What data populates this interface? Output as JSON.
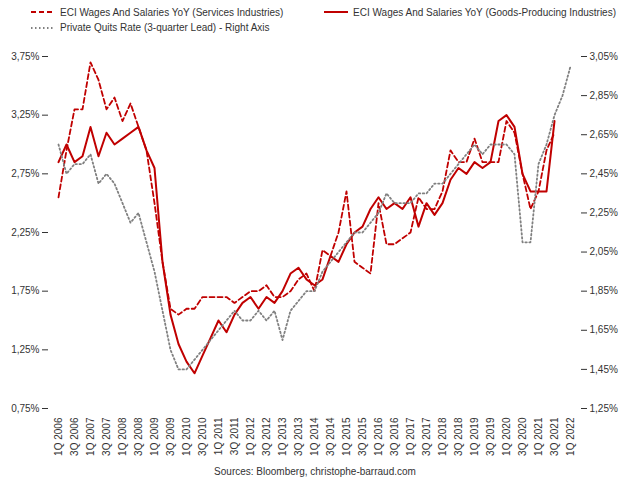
{
  "chart_data": {
    "type": "line",
    "source": "Sources: Bloomberg, christophe-barraud.com",
    "categories": [
      "1Q 2006",
      null,
      "3Q 2006",
      null,
      "1Q 2007",
      null,
      "3Q 2007",
      null,
      "1Q 2008",
      null,
      "3Q 2008",
      null,
      "1Q 2009",
      null,
      "3Q 2009",
      null,
      "1Q 2010",
      null,
      "3Q 2010",
      null,
      "1Q 2011",
      null,
      "3Q 2011",
      null,
      "1Q 2012",
      null,
      "3Q 2012",
      null,
      "1Q 2013",
      null,
      "3Q 2013",
      null,
      "1Q 2014",
      null,
      "3Q 2014",
      null,
      "1Q 2015",
      null,
      "3Q 2015",
      null,
      "1Q 2016",
      null,
      "3Q 2016",
      null,
      "1Q 2017",
      null,
      "3Q 2017",
      null,
      "1Q 2018",
      null,
      "3Q 2018",
      null,
      "1Q 2019",
      null,
      "3Q 2019",
      null,
      "1Q 2020",
      null,
      "3Q 2020",
      null,
      "1Q 2021",
      null,
      "3Q 2021",
      null,
      "1Q 2022"
    ],
    "ylim": [
      0.75,
      3.75
    ],
    "yticks": [
      {
        "value": 0.75,
        "label": "0,75%"
      },
      {
        "value": 1.25,
        "label": "1,25%"
      },
      {
        "value": 1.75,
        "label": "1,75%"
      },
      {
        "value": 2.25,
        "label": "2,25%"
      },
      {
        "value": 2.75,
        "label": "2,75%"
      },
      {
        "value": 3.25,
        "label": "3,25%"
      },
      {
        "value": 3.75,
        "label": "3,75%"
      }
    ],
    "y2lim": [
      1.25,
      3.05
    ],
    "y2ticks": [
      {
        "value": 1.25,
        "label": "1,25%"
      },
      {
        "value": 1.45,
        "label": "1,45%"
      },
      {
        "value": 1.65,
        "label": "1,65%"
      },
      {
        "value": 1.85,
        "label": "1,85%"
      },
      {
        "value": 2.05,
        "label": "2,05%"
      },
      {
        "value": 2.25,
        "label": "2,25%"
      },
      {
        "value": 2.45,
        "label": "2,45%"
      },
      {
        "value": 2.65,
        "label": "2,65%"
      },
      {
        "value": 2.85,
        "label": "2,85%"
      },
      {
        "value": 3.05,
        "label": "3,05%"
      }
    ],
    "grid": false,
    "legend": "top",
    "series": [
      {
        "name": "ECI Wages And Salaries YoY (Services Industries)",
        "color": "#c00000",
        "line_style": "dashed",
        "values": [
          2.55,
          2.95,
          3.3,
          3.3,
          3.7,
          3.55,
          3.3,
          3.4,
          3.2,
          3.35,
          3.15,
          2.95,
          2.5,
          2.0,
          1.6,
          1.55,
          1.6,
          1.6,
          1.7,
          1.7,
          1.7,
          1.7,
          1.65,
          1.7,
          1.75,
          1.75,
          1.8,
          1.7,
          1.7,
          1.75,
          1.85,
          1.9,
          1.75,
          2.1,
          2.05,
          2.25,
          2.6,
          2.0,
          1.95,
          1.9,
          2.5,
          2.15,
          2.15,
          2.2,
          2.25,
          2.55,
          2.45,
          2.45,
          2.6,
          2.95,
          2.85,
          2.85,
          3.05,
          2.85,
          2.85,
          2.85,
          3.2,
          3.1,
          2.75,
          2.45,
          2.6,
          2.95,
          3.1,
          null,
          null
        ]
      },
      {
        "name": "ECI Wages And Salaries YoY (Goods-Producing Industries)",
        "color": "#c00000",
        "line_style": "solid",
        "values": [
          2.85,
          3.0,
          2.85,
          2.9,
          3.15,
          2.9,
          3.1,
          3.0,
          3.05,
          3.1,
          3.15,
          2.95,
          2.8,
          2.0,
          1.55,
          1.3,
          1.15,
          1.05,
          1.2,
          1.35,
          1.5,
          1.4,
          1.55,
          1.65,
          1.7,
          1.6,
          1.7,
          1.65,
          1.75,
          1.9,
          1.95,
          1.85,
          1.8,
          1.85,
          2.05,
          2.0,
          2.15,
          2.25,
          2.3,
          2.45,
          2.55,
          2.45,
          2.5,
          2.45,
          2.55,
          2.3,
          2.5,
          2.4,
          2.5,
          2.7,
          2.8,
          2.75,
          2.85,
          2.8,
          2.85,
          3.2,
          3.25,
          3.15,
          2.75,
          2.6,
          2.6,
          2.6,
          3.2,
          null,
          null
        ]
      },
      {
        "name": "Private Quits Rate (3-quarter Lead) - Right Axis",
        "color": "#808080",
        "line_style": "dotted",
        "axis": "y2",
        "values": [
          2.6,
          2.45,
          2.5,
          2.5,
          2.55,
          2.4,
          2.45,
          2.4,
          2.3,
          2.2,
          2.25,
          2.1,
          1.95,
          1.75,
          1.55,
          1.45,
          1.45,
          1.5,
          1.55,
          1.6,
          1.65,
          1.7,
          1.75,
          1.7,
          1.7,
          1.75,
          1.7,
          1.75,
          1.6,
          1.75,
          1.8,
          1.85,
          1.85,
          1.95,
          2.0,
          2.05,
          2.1,
          2.15,
          2.15,
          2.2,
          2.25,
          2.35,
          2.3,
          2.3,
          2.3,
          2.35,
          2.35,
          2.4,
          2.4,
          2.45,
          2.5,
          2.55,
          2.6,
          2.55,
          2.6,
          2.6,
          2.6,
          2.55,
          2.1,
          2.1,
          2.5,
          2.6,
          2.75,
          2.85,
          3.0
        ]
      }
    ]
  }
}
